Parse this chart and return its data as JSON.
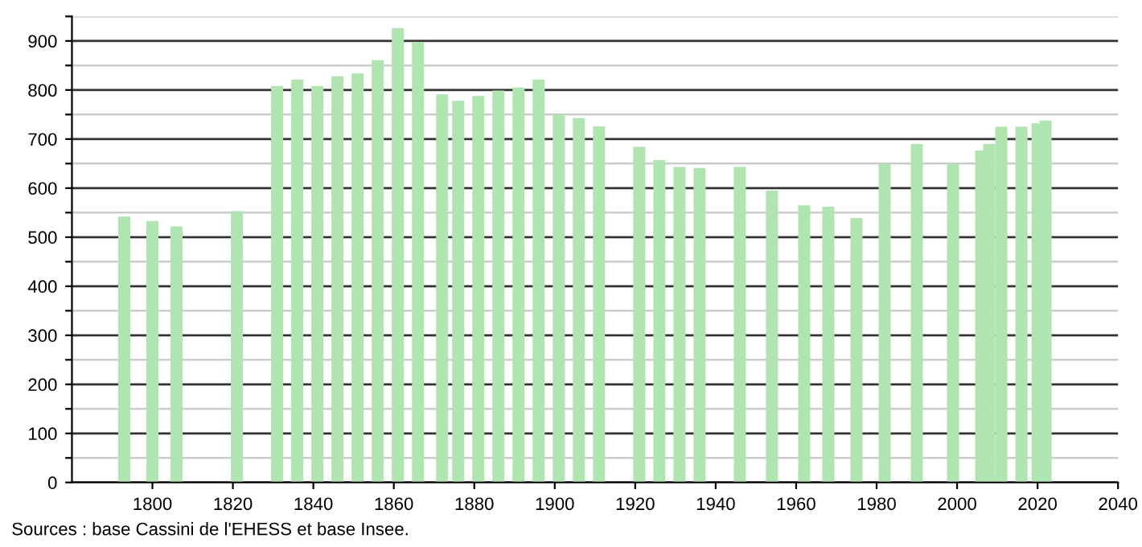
{
  "chart_data": {
    "type": "bar",
    "color": "#b0e4b0",
    "x": [
      1793,
      1800,
      1806,
      1821,
      1831,
      1836,
      1841,
      1846,
      1851,
      1856,
      1861,
      1866,
      1872,
      1876,
      1881,
      1886,
      1891,
      1896,
      1901,
      1906,
      1911,
      1921,
      1926,
      1931,
      1936,
      1946,
      1954,
      1962,
      1968,
      1975,
      1982,
      1990,
      1999,
      2006,
      2008,
      2011,
      2016,
      2020,
      2022
    ],
    "values": [
      542,
      533,
      522,
      553,
      808,
      821,
      808,
      828,
      834,
      861,
      926,
      898,
      791,
      778,
      788,
      799,
      805,
      821,
      750,
      743,
      726,
      684,
      657,
      643,
      641,
      643,
      595,
      565,
      562,
      539,
      649,
      690,
      649,
      677,
      690,
      725,
      725,
      732,
      738
    ],
    "xlim": [
      1780,
      2040
    ],
    "xticks": [
      1800,
      1820,
      1840,
      1860,
      1880,
      1900,
      1920,
      1940,
      1960,
      1980,
      2000,
      2020,
      2040
    ],
    "ylim": [
      0,
      950
    ],
    "yticks": [
      0,
      {
        "value": 50,
        "label": null
      },
      100,
      {
        "value": 150,
        "label": null
      },
      200,
      {
        "value": 250,
        "label": null
      },
      300,
      {
        "value": 350,
        "label": null
      },
      400,
      {
        "value": 450,
        "label": null
      },
      500,
      {
        "value": 550,
        "label": null
      },
      600,
      {
        "value": 650,
        "label": null
      },
      700,
      {
        "value": 750,
        "label": null
      },
      800,
      {
        "value": 850,
        "label": null
      },
      900,
      {
        "value": 950,
        "label": null
      }
    ],
    "grid": "y",
    "annotations": [
      "Sources : base Cassini de l'EHESS et base Insee."
    ]
  }
}
